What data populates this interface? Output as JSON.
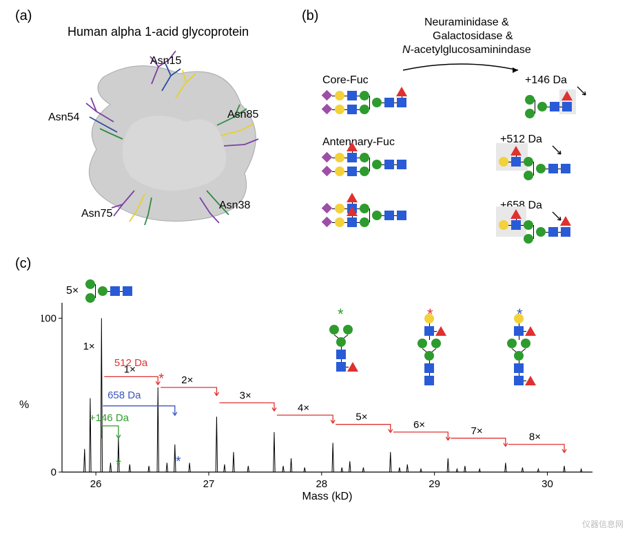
{
  "panels": {
    "a": "(a)",
    "b": "(b)",
    "c": "(c)"
  },
  "a": {
    "title": "Human alpha 1-acid glycoprotein",
    "sites": [
      "Asn15",
      "Asn54",
      "Asn85",
      "Asn75",
      "Asn38"
    ],
    "protein_color": "#c7c7c7",
    "stick_colors": [
      "#7c3fa3",
      "#2a4da0",
      "#e6d12a",
      "#2f8a3f"
    ]
  },
  "b": {
    "enzymes_line1": "Neuraminidase &",
    "enzymes_line2": "Galactosidase &",
    "enzymes_line3_prefix_italic": "N",
    "enzymes_line3_rest": "-acetylglucosaminindase",
    "left_labels": [
      "Core-Fuc",
      "Antennary-Fuc"
    ],
    "right_labels": [
      "+146 Da",
      "+512 Da",
      "+658 Da"
    ]
  },
  "c": {
    "x_label": "Mass (kD)",
    "y_label": "%",
    "x_ticks": [
      26,
      27,
      28,
      29,
      30
    ],
    "y_ticks": [
      0,
      100
    ],
    "xlim": [
      25.7,
      30.4
    ],
    "ylim": [
      0,
      110
    ],
    "series_colors": {
      "da146": "#2e9b2e",
      "da512": "#e03030",
      "da658": "#3a54c0",
      "text_black": "#000000"
    },
    "core_label": "5×",
    "annotations": {
      "da146": "+146 Da",
      "da512": "512 Da",
      "da658": "658 Da",
      "steps": [
        "1×",
        "2×",
        "3×",
        "4×",
        "5×",
        "6×",
        "7×",
        "8×"
      ]
    },
    "asterisks": {
      "green": "*",
      "red": "*",
      "blue": "*"
    },
    "peaks": [
      {
        "x": 25.9,
        "h": 15
      },
      {
        "x": 25.95,
        "h": 48
      },
      {
        "x": 26.05,
        "h": 100
      },
      {
        "x": 26.13,
        "h": 6
      },
      {
        "x": 26.2,
        "h": 22
      },
      {
        "x": 26.3,
        "h": 5
      },
      {
        "x": 26.47,
        "h": 4
      },
      {
        "x": 26.55,
        "h": 55
      },
      {
        "x": 26.63,
        "h": 6
      },
      {
        "x": 26.7,
        "h": 18
      },
      {
        "x": 26.83,
        "h": 6
      },
      {
        "x": 27.07,
        "h": 36
      },
      {
        "x": 27.14,
        "h": 5
      },
      {
        "x": 27.22,
        "h": 13
      },
      {
        "x": 27.35,
        "h": 4
      },
      {
        "x": 27.58,
        "h": 26
      },
      {
        "x": 27.66,
        "h": 4
      },
      {
        "x": 27.73,
        "h": 9
      },
      {
        "x": 27.85,
        "h": 3
      },
      {
        "x": 28.1,
        "h": 19
      },
      {
        "x": 28.18,
        "h": 3
      },
      {
        "x": 28.25,
        "h": 7
      },
      {
        "x": 28.37,
        "h": 3
      },
      {
        "x": 28.61,
        "h": 13
      },
      {
        "x": 28.69,
        "h": 3
      },
      {
        "x": 28.76,
        "h": 5
      },
      {
        "x": 28.88,
        "h": 2
      },
      {
        "x": 29.12,
        "h": 9
      },
      {
        "x": 29.2,
        "h": 2
      },
      {
        "x": 29.27,
        "h": 4
      },
      {
        "x": 29.4,
        "h": 2
      },
      {
        "x": 29.63,
        "h": 6
      },
      {
        "x": 29.78,
        "h": 3
      },
      {
        "x": 29.92,
        "h": 2
      },
      {
        "x": 30.15,
        "h": 4
      },
      {
        "x": 30.3,
        "h": 2
      }
    ],
    "step_markers_x": [
      26.05,
      26.55,
      27.07,
      27.58,
      28.1,
      28.61,
      29.12,
      29.63,
      30.15
    ],
    "step_markers_y": [
      62,
      55,
      45,
      37,
      31,
      26,
      22,
      18,
      16
    ],
    "axis_color": "#000000",
    "line_width": 1.2,
    "font_size_labels": 16,
    "font_size_ticks": 15
  },
  "glycan_colors": {
    "glcnac": "#2a5bd7",
    "mannose": "#2e9b2e",
    "galactose": "#f3d13a",
    "sialic": "#9d4fa8",
    "fucose": "#e03030",
    "link": "#000000",
    "highlight_bg": "#e8e8e8"
  },
  "watermark": "仪器信息网"
}
